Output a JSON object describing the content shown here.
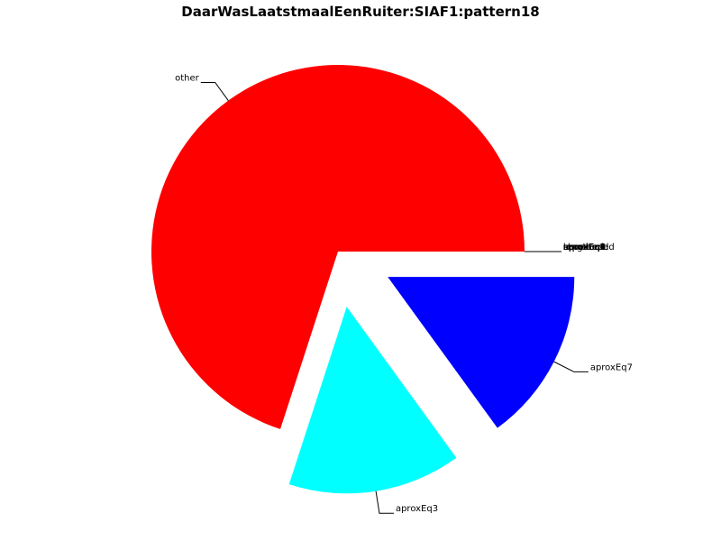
{
  "chart_data": {
    "type": "pie",
    "title": "DaarWasLaatstmaalEenRuiter:SIAF1:pattern18",
    "slices": [
      {
        "label": "other",
        "value": 70,
        "color": "#ff0000",
        "exploded": false
      },
      {
        "label": "aproxEq3",
        "value": 15,
        "color": "#00ffff",
        "exploded": true
      },
      {
        "label": "aproxEq7",
        "value": 15,
        "color": "#0000ff",
        "exploded": true
      },
      {
        "label": "aproxEq1",
        "value": 0,
        "color": "#000000",
        "exploded": false
      },
      {
        "label": "aproxEq2",
        "value": 0,
        "color": "#000000",
        "exploded": false
      },
      {
        "label": "aproxEq4",
        "value": 0,
        "color": "#000000",
        "exploded": false
      },
      {
        "label": "aproxEq5",
        "value": 0,
        "color": "#000000",
        "exploded": false
      },
      {
        "label": "aproxEq6",
        "value": 0,
        "color": "#000000",
        "exploded": false
      },
      {
        "label": "equal",
        "value": 0,
        "color": "#000000",
        "exploded": false
      },
      {
        "label": "lengthened",
        "value": 0,
        "color": "#000000",
        "exploded": false
      },
      {
        "label": "shortened",
        "value": 0,
        "color": "#000000",
        "exploded": false
      },
      {
        "label": "repeated",
        "value": 0,
        "color": "#000000",
        "exploded": false
      }
    ]
  }
}
